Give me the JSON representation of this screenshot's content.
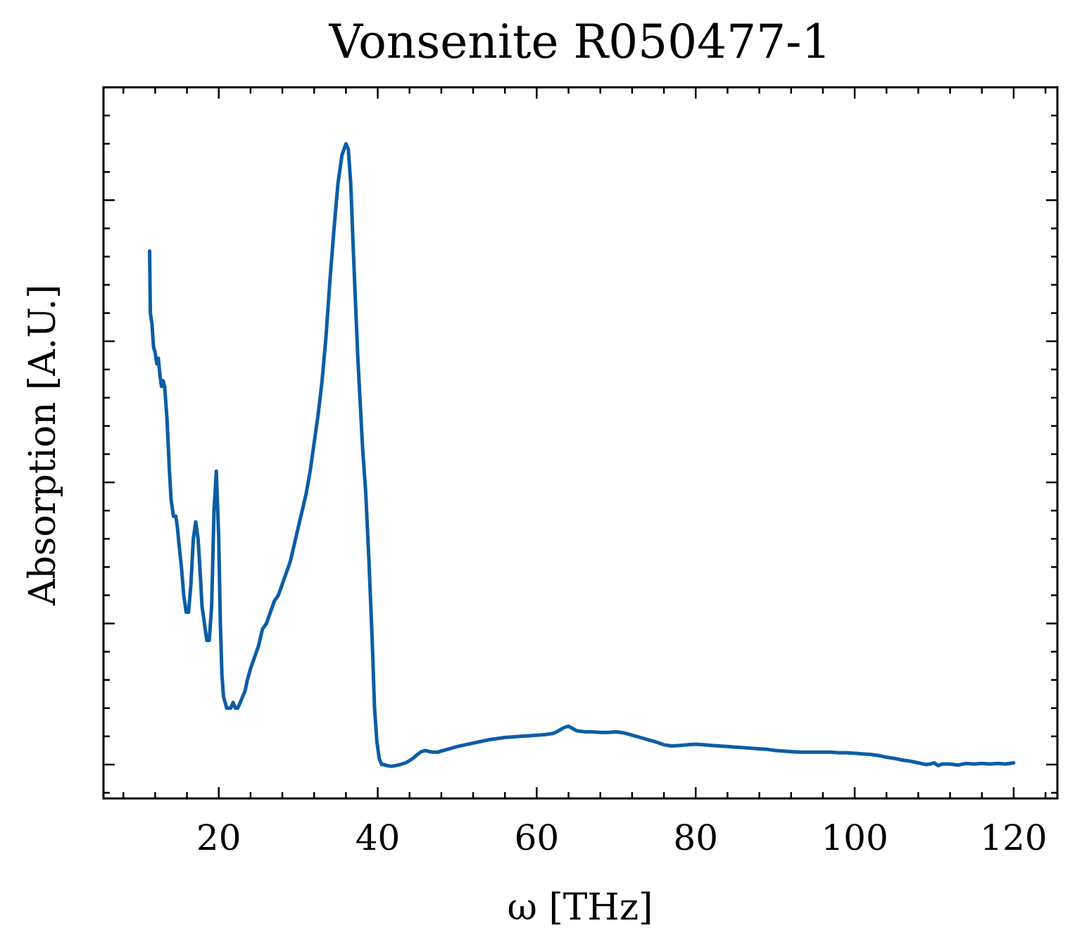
{
  "chart_data": {
    "type": "line",
    "title": "Vonsenite R050477-1",
    "xlabel": "ω [THz]",
    "ylabel": "Absorption [A.U.]",
    "xlim": [
      5.5,
      125.5
    ],
    "ylim": [
      -0.06,
      1.2
    ],
    "x_ticks": [
      20,
      40,
      60,
      80,
      100,
      120
    ],
    "x_minor_step": 4,
    "y_ticks": [
      0,
      0.25,
      0.5,
      0.75,
      1.0
    ],
    "y_minor_step": 0.05,
    "y_tick_labels_shown": false,
    "grid": false,
    "line_color": "#0C5DA5",
    "series": [
      {
        "x": [
          11.3,
          11.4,
          11.6,
          11.8,
          12.0,
          12.2,
          12.4,
          12.6,
          12.8,
          13.0,
          13.2,
          13.5,
          13.8,
          14.0,
          14.3,
          14.6,
          14.8,
          15.0,
          15.3,
          15.6,
          15.9,
          16.2,
          16.5,
          16.8,
          17.1,
          17.4,
          17.7,
          17.9,
          18.1,
          18.3,
          18.5,
          18.8,
          19.1,
          19.4,
          19.7,
          20.0,
          20.2,
          20.4,
          20.6,
          20.8,
          21.0,
          21.2,
          21.5,
          21.8,
          22.1,
          22.4,
          22.7,
          23.0,
          23.3,
          23.6,
          24.0,
          24.5,
          25.0,
          25.5,
          26.0,
          26.5,
          27.0,
          27.5,
          28.0,
          28.5,
          29.0,
          29.5,
          30.0,
          30.5,
          31.0,
          31.5,
          32.0,
          32.5,
          33.0,
          33.5,
          34.0,
          34.5,
          35.0,
          35.5,
          36.0,
          36.3,
          36.6,
          36.9,
          37.2,
          37.5,
          37.8,
          38.1,
          38.5,
          38.9,
          39.3,
          39.6,
          39.9,
          40.2,
          40.5,
          40.8,
          41.2,
          41.7,
          42.2,
          42.8,
          43.5,
          44.0,
          44.5,
          45.0,
          45.5,
          46.0,
          46.5,
          47.0,
          47.5,
          48.0,
          49.0,
          50.0,
          51.0,
          52.0,
          53.0,
          54.0,
          55.0,
          56.0,
          57.0,
          58.0,
          59.0,
          60.0,
          61.0,
          62.0,
          62.5,
          63.0,
          63.5,
          64.0,
          64.5,
          65.0,
          66.0,
          67.0,
          68.0,
          69.0,
          70.0,
          71.0,
          72.0,
          73.0,
          74.0,
          75.0,
          76.0,
          77.0,
          78.0,
          79.0,
          80.0,
          81.0,
          82.0,
          83.0,
          84.0,
          85.0,
          86.0,
          87.0,
          88.0,
          89.0,
          90.0,
          91.0,
          92.0,
          93.0,
          94.0,
          95.0,
          96.0,
          97.0,
          98.0,
          99.0,
          100.0,
          101.0,
          102.0,
          103.0,
          104.0,
          105.0,
          106.0,
          107.0,
          108.0,
          109.0,
          109.5,
          110.0,
          110.5,
          111.0,
          112.0,
          113.0,
          114.0,
          115.0,
          116.0,
          117.0,
          118.0,
          119.0,
          120.0
        ],
        "y": [
          0.91,
          0.8,
          0.78,
          0.74,
          0.73,
          0.71,
          0.72,
          0.69,
          0.67,
          0.68,
          0.67,
          0.61,
          0.52,
          0.47,
          0.44,
          0.44,
          0.42,
          0.39,
          0.35,
          0.3,
          0.27,
          0.27,
          0.32,
          0.4,
          0.43,
          0.4,
          0.33,
          0.28,
          0.26,
          0.24,
          0.22,
          0.22,
          0.28,
          0.45,
          0.52,
          0.4,
          0.25,
          0.16,
          0.12,
          0.11,
          0.1,
          0.1,
          0.1,
          0.11,
          0.1,
          0.1,
          0.11,
          0.12,
          0.13,
          0.15,
          0.17,
          0.19,
          0.21,
          0.24,
          0.25,
          0.27,
          0.29,
          0.3,
          0.32,
          0.34,
          0.36,
          0.39,
          0.42,
          0.45,
          0.48,
          0.52,
          0.57,
          0.62,
          0.68,
          0.76,
          0.86,
          0.95,
          1.03,
          1.08,
          1.1,
          1.09,
          1.03,
          0.92,
          0.82,
          0.72,
          0.64,
          0.56,
          0.48,
          0.36,
          0.22,
          0.1,
          0.04,
          0.01,
          0.0,
          0.0,
          -0.002,
          -0.003,
          -0.002,
          0.0,
          0.003,
          0.007,
          0.012,
          0.018,
          0.023,
          0.025,
          0.023,
          0.022,
          0.022,
          0.024,
          0.028,
          0.032,
          0.035,
          0.038,
          0.041,
          0.044,
          0.046,
          0.048,
          0.049,
          0.05,
          0.051,
          0.052,
          0.053,
          0.055,
          0.058,
          0.062,
          0.066,
          0.068,
          0.064,
          0.06,
          0.058,
          0.058,
          0.057,
          0.057,
          0.058,
          0.056,
          0.052,
          0.048,
          0.044,
          0.04,
          0.035,
          0.033,
          0.034,
          0.035,
          0.036,
          0.035,
          0.034,
          0.033,
          0.032,
          0.031,
          0.03,
          0.029,
          0.028,
          0.027,
          0.025,
          0.024,
          0.023,
          0.022,
          0.022,
          0.022,
          0.022,
          0.022,
          0.021,
          0.021,
          0.02,
          0.019,
          0.018,
          0.016,
          0.013,
          0.011,
          0.008,
          0.006,
          0.003,
          0.0,
          0.001,
          0.003,
          -0.002,
          0.001,
          0.001,
          -0.001,
          0.002,
          0.001,
          0.002,
          0.001,
          0.002,
          0.001,
          0.003
        ]
      }
    ]
  }
}
